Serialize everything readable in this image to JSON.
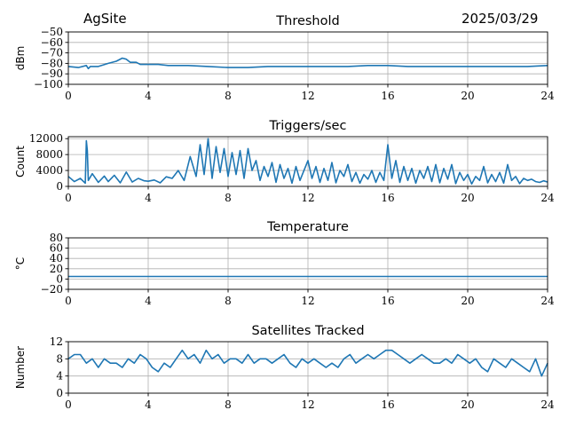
{
  "header": {
    "site": "AgSite",
    "date": "2025/03/29"
  },
  "colors": {
    "series": "#1f77b4",
    "grid": "#b0b0b0",
    "axis": "#000000"
  },
  "chart_data": [
    {
      "type": "line",
      "title": "Threshold",
      "xlabel": "",
      "ylabel": "dBm",
      "xlim": [
        0,
        24
      ],
      "ylim": [
        -100,
        -50
      ],
      "x_ticks": [
        0,
        4,
        8,
        12,
        16,
        20,
        24
      ],
      "y_ticks": [
        -100,
        -90,
        -80,
        -70,
        -60,
        -50
      ],
      "y_tick_labels": [
        "−100",
        "−90",
        "−80",
        "−70",
        "−60",
        "−50"
      ],
      "grid": true,
      "series": [
        {
          "x": [
            0,
            0.5,
            0.9,
            1.0,
            1.1,
            1.5,
            2.0,
            2.4,
            2.7,
            2.9,
            3.1,
            3.4,
            3.6,
            4.0,
            4.5,
            5.0,
            6.0,
            7.0,
            8.0,
            9.0,
            10.0,
            11.0,
            12.0,
            13.0,
            14.0,
            15.0,
            16.0,
            17.0,
            18.0,
            19.0,
            20.0,
            21.0,
            22.0,
            23.0,
            24.0
          ],
          "y": [
            -83,
            -84,
            -82,
            -85,
            -83,
            -83,
            -80,
            -78,
            -75,
            -76,
            -79,
            -79,
            -81,
            -81,
            -81,
            -82,
            -82,
            -83,
            -84,
            -84,
            -83,
            -83,
            -83,
            -83,
            -83,
            -82,
            -82,
            -83,
            -83,
            -83,
            -83,
            -83,
            -83,
            -83,
            -82
          ]
        }
      ]
    },
    {
      "type": "line",
      "title": "Triggers/sec",
      "xlabel": "",
      "ylabel": "Count",
      "xlim": [
        0,
        24
      ],
      "ylim": [
        0,
        12500
      ],
      "x_ticks": [
        0,
        4,
        8,
        12,
        16,
        20,
        24
      ],
      "y_ticks": [
        0,
        4000,
        8000,
        12000
      ],
      "y_tick_labels": [
        "0",
        "4000",
        "8000",
        "12000"
      ],
      "grid": true,
      "series": [
        {
          "x": [
            0,
            0.3,
            0.6,
            0.85,
            0.9,
            0.95,
            1.0,
            1.2,
            1.5,
            1.8,
            2.0,
            2.3,
            2.6,
            2.9,
            3.2,
            3.5,
            3.8,
            4.0,
            4.3,
            4.6,
            4.9,
            5.2,
            5.5,
            5.8,
            6.1,
            6.4,
            6.6,
            6.8,
            7.0,
            7.2,
            7.4,
            7.6,
            7.8,
            8.0,
            8.2,
            8.4,
            8.6,
            8.8,
            9.0,
            9.2,
            9.4,
            9.6,
            9.8,
            10.0,
            10.2,
            10.4,
            10.6,
            10.8,
            11.0,
            11.2,
            11.4,
            11.6,
            11.8,
            12.0,
            12.2,
            12.4,
            12.6,
            12.8,
            13.0,
            13.2,
            13.4,
            13.6,
            13.8,
            14.0,
            14.2,
            14.4,
            14.6,
            14.8,
            15.0,
            15.2,
            15.4,
            15.6,
            15.8,
            16.0,
            16.2,
            16.4,
            16.6,
            16.8,
            17.0,
            17.2,
            17.4,
            17.6,
            17.8,
            18.0,
            18.2,
            18.4,
            18.6,
            18.8,
            19.0,
            19.2,
            19.4,
            19.6,
            19.8,
            20.0,
            20.2,
            20.4,
            20.6,
            20.8,
            21.0,
            21.2,
            21.4,
            21.6,
            21.8,
            22.0,
            22.2,
            22.4,
            22.6,
            22.8,
            23.0,
            23.2,
            23.4,
            23.6,
            23.8,
            24.0
          ],
          "y": [
            2500,
            1200,
            2000,
            800,
            11500,
            9000,
            1500,
            3200,
            1000,
            2600,
            1200,
            2800,
            900,
            3600,
            1100,
            2000,
            1400,
            1300,
            1600,
            900,
            2400,
            2000,
            4000,
            1500,
            7500,
            2500,
            10500,
            3000,
            12000,
            2000,
            10000,
            3500,
            9500,
            2500,
            8500,
            3000,
            9000,
            2000,
            9500,
            4000,
            6500,
            1500,
            5000,
            2500,
            6000,
            1000,
            5500,
            2000,
            4500,
            800,
            5000,
            1500,
            4000,
            6500,
            2000,
            5000,
            1000,
            4500,
            1500,
            6000,
            900,
            4000,
            2500,
            5500,
            1200,
            3500,
            800,
            3000,
            1800,
            4000,
            1000,
            3500,
            1500,
            10500,
            2000,
            6500,
            1000,
            5000,
            1500,
            4500,
            800,
            4000,
            2000,
            5000,
            1200,
            5500,
            900,
            4500,
            1800,
            5500,
            700,
            3500,
            1500,
            3000,
            600,
            2500,
            1500,
            5000,
            900,
            3000,
            1200,
            3500,
            800,
            5500,
            1500,
            2500,
            700,
            2000,
            1500,
            1800,
            1200,
            1000,
            1400,
            1100
          ]
        }
      ]
    },
    {
      "type": "line",
      "title": "Temperature",
      "xlabel": "",
      "ylabel": "°C",
      "xlim": [
        0,
        24
      ],
      "ylim": [
        -20,
        80
      ],
      "x_ticks": [
        0,
        4,
        8,
        12,
        16,
        20,
        24
      ],
      "y_ticks": [
        -20,
        0,
        20,
        40,
        60,
        80
      ],
      "y_tick_labels": [
        "−20",
        "0",
        "20",
        "40",
        "60",
        "80"
      ],
      "grid": true,
      "series": [
        {
          "x": [
            0,
            24
          ],
          "y": [
            5,
            5
          ]
        }
      ]
    },
    {
      "type": "line",
      "title": "Satellites Tracked",
      "xlabel": "",
      "ylabel": "Number",
      "xlim": [
        0,
        24
      ],
      "ylim": [
        0,
        12
      ],
      "x_ticks": [
        0,
        4,
        8,
        12,
        16,
        20,
        24
      ],
      "y_ticks": [
        0,
        4,
        8,
        12
      ],
      "y_tick_labels": [
        "0",
        "4",
        "8",
        "12"
      ],
      "grid": true,
      "series": [
        {
          "x": [
            0,
            0.3,
            0.6,
            0.9,
            1.2,
            1.5,
            1.8,
            2.1,
            2.4,
            2.7,
            3.0,
            3.3,
            3.6,
            3.9,
            4.2,
            4.5,
            4.8,
            5.1,
            5.4,
            5.7,
            6.0,
            6.3,
            6.6,
            6.9,
            7.2,
            7.5,
            7.8,
            8.1,
            8.4,
            8.7,
            9.0,
            9.3,
            9.6,
            9.9,
            10.2,
            10.5,
            10.8,
            11.1,
            11.4,
            11.7,
            12.0,
            12.3,
            12.6,
            12.9,
            13.2,
            13.5,
            13.8,
            14.1,
            14.4,
            14.7,
            15.0,
            15.3,
            15.6,
            15.9,
            16.2,
            16.5,
            16.8,
            17.1,
            17.4,
            17.7,
            18.0,
            18.3,
            18.6,
            18.9,
            19.2,
            19.5,
            19.8,
            20.1,
            20.4,
            20.7,
            21.0,
            21.3,
            21.6,
            21.9,
            22.2,
            22.5,
            22.8,
            23.1,
            23.4,
            23.7,
            24.0
          ],
          "y": [
            8,
            9,
            9,
            7,
            8,
            6,
            8,
            7,
            7,
            6,
            8,
            7,
            9,
            8,
            6,
            5,
            7,
            6,
            8,
            10,
            8,
            9,
            7,
            10,
            8,
            9,
            7,
            8,
            8,
            7,
            9,
            7,
            8,
            8,
            7,
            8,
            9,
            7,
            6,
            8,
            7,
            8,
            7,
            6,
            7,
            6,
            8,
            9,
            7,
            8,
            9,
            8,
            9,
            10,
            10,
            9,
            8,
            7,
            8,
            9,
            8,
            7,
            7,
            8,
            7,
            9,
            8,
            7,
            8,
            6,
            5,
            8,
            7,
            6,
            8,
            7,
            6,
            5,
            8,
            4,
            7
          ]
        }
      ]
    }
  ]
}
